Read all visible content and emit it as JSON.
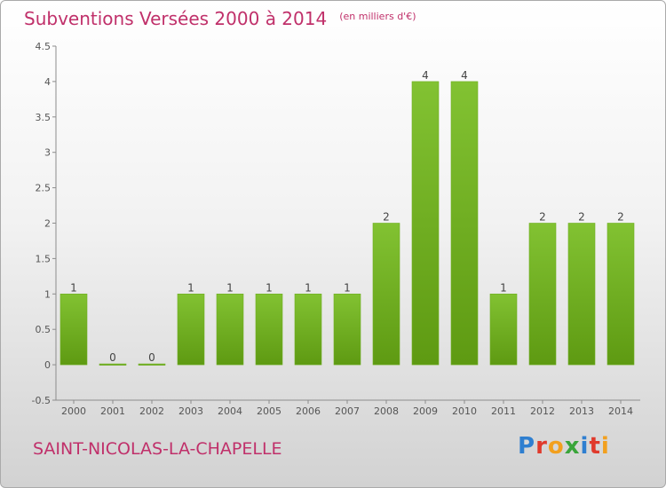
{
  "header": {
    "title": "Subventions Versées 2000 à 2014",
    "subtitle": "(en milliers d'€)"
  },
  "footer": {
    "commune": "SAINT-NICOLAS-LA-CHAPELLE",
    "logo_text": "Proxiti",
    "logo_letters": [
      {
        "ch": "P",
        "color": "#2f7fd0"
      },
      {
        "ch": "r",
        "color": "#e03a2c"
      },
      {
        "ch": "o",
        "color": "#f2a01e"
      },
      {
        "ch": "x",
        "color": "#3aa53a"
      },
      {
        "ch": "i",
        "color": "#2f7fd0"
      },
      {
        "ch": "t",
        "color": "#e03a2c"
      },
      {
        "ch": "i",
        "color": "#f2a01e"
      }
    ]
  },
  "chart_data": {
    "type": "bar",
    "title": "Subventions Versées 2000 à 2014",
    "subtitle": "(en milliers d'€)",
    "categories": [
      "2000",
      "2001",
      "2002",
      "2003",
      "2004",
      "2005",
      "2006",
      "2007",
      "2008",
      "2009",
      "2010",
      "2011",
      "2012",
      "2013",
      "2014"
    ],
    "values": [
      1,
      0,
      0,
      1,
      1,
      1,
      1,
      1,
      2,
      4,
      4,
      1,
      2,
      2,
      2
    ],
    "value_labels": [
      "1",
      "0",
      "0",
      "1",
      "1",
      "1",
      "1",
      "1",
      "2",
      "4",
      "4",
      "1",
      "2",
      "2",
      "2"
    ],
    "ylim": [
      -0.5,
      4.5
    ],
    "yticks": [
      "-0.5",
      "0",
      "0.5",
      "1",
      "1.5",
      "2",
      "2.5",
      "3",
      "3.5",
      "4",
      "4.5"
    ],
    "ytick_values": [
      -0.5,
      0,
      0.5,
      1,
      1.5,
      2,
      2.5,
      3,
      3.5,
      4,
      4.5
    ],
    "bar_color": "#82c232",
    "bar_color_dark": "#5e9a12",
    "grid": false
  }
}
